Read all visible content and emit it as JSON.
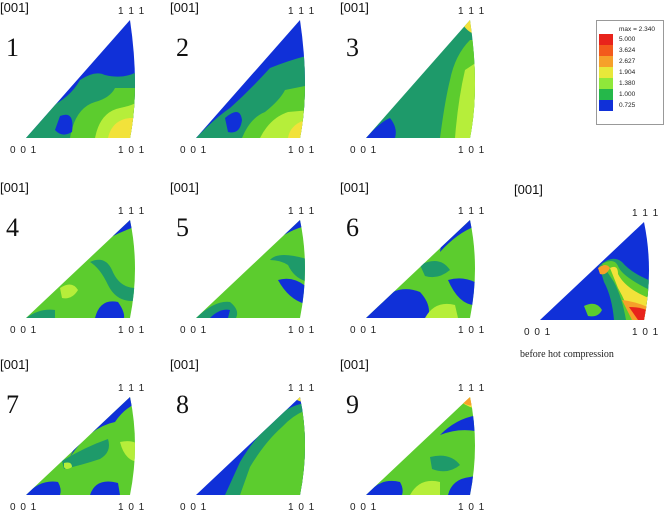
{
  "axis_labels": {
    "top": "1 1 1",
    "left": "0 0 1",
    "right": "1 0 1"
  },
  "panels": [
    {
      "dir": "[001]",
      "number": "1"
    },
    {
      "dir": "[001]",
      "number": "2"
    },
    {
      "dir": "[001]",
      "number": "3"
    },
    {
      "dir": "[001]",
      "number": "4"
    },
    {
      "dir": "[001]",
      "number": "5"
    },
    {
      "dir": "[001]",
      "number": "6"
    },
    {
      "dir": "[001]",
      "number": "7"
    },
    {
      "dir": "[001]",
      "number": "8"
    },
    {
      "dir": "[001]",
      "number": "9"
    },
    {
      "dir": "[001]",
      "caption": "before hot compression"
    }
  ],
  "legend": {
    "entries": [
      {
        "label": "max = 2.340",
        "color": "#ffffff"
      },
      {
        "label": "5.000",
        "color": "#e8231b"
      },
      {
        "label": "3.624",
        "color": "#f35a1c"
      },
      {
        "label": "2.627",
        "color": "#f6a02a"
      },
      {
        "label": "1.904",
        "color": "#e8e83a"
      },
      {
        "label": "1.380",
        "color": "#8fe83a"
      },
      {
        "label": "1.000",
        "color": "#25b84a"
      },
      {
        "label": "0.725",
        "color": "#1030d8"
      }
    ]
  },
  "colors": {
    "blue": "#1030d8",
    "teal": "#1e9a6a",
    "green": "#5ccc2e",
    "lime": "#b6ee3a",
    "yellow": "#f2e23a",
    "orange": "#f6a02a",
    "red": "#e8231b"
  }
}
